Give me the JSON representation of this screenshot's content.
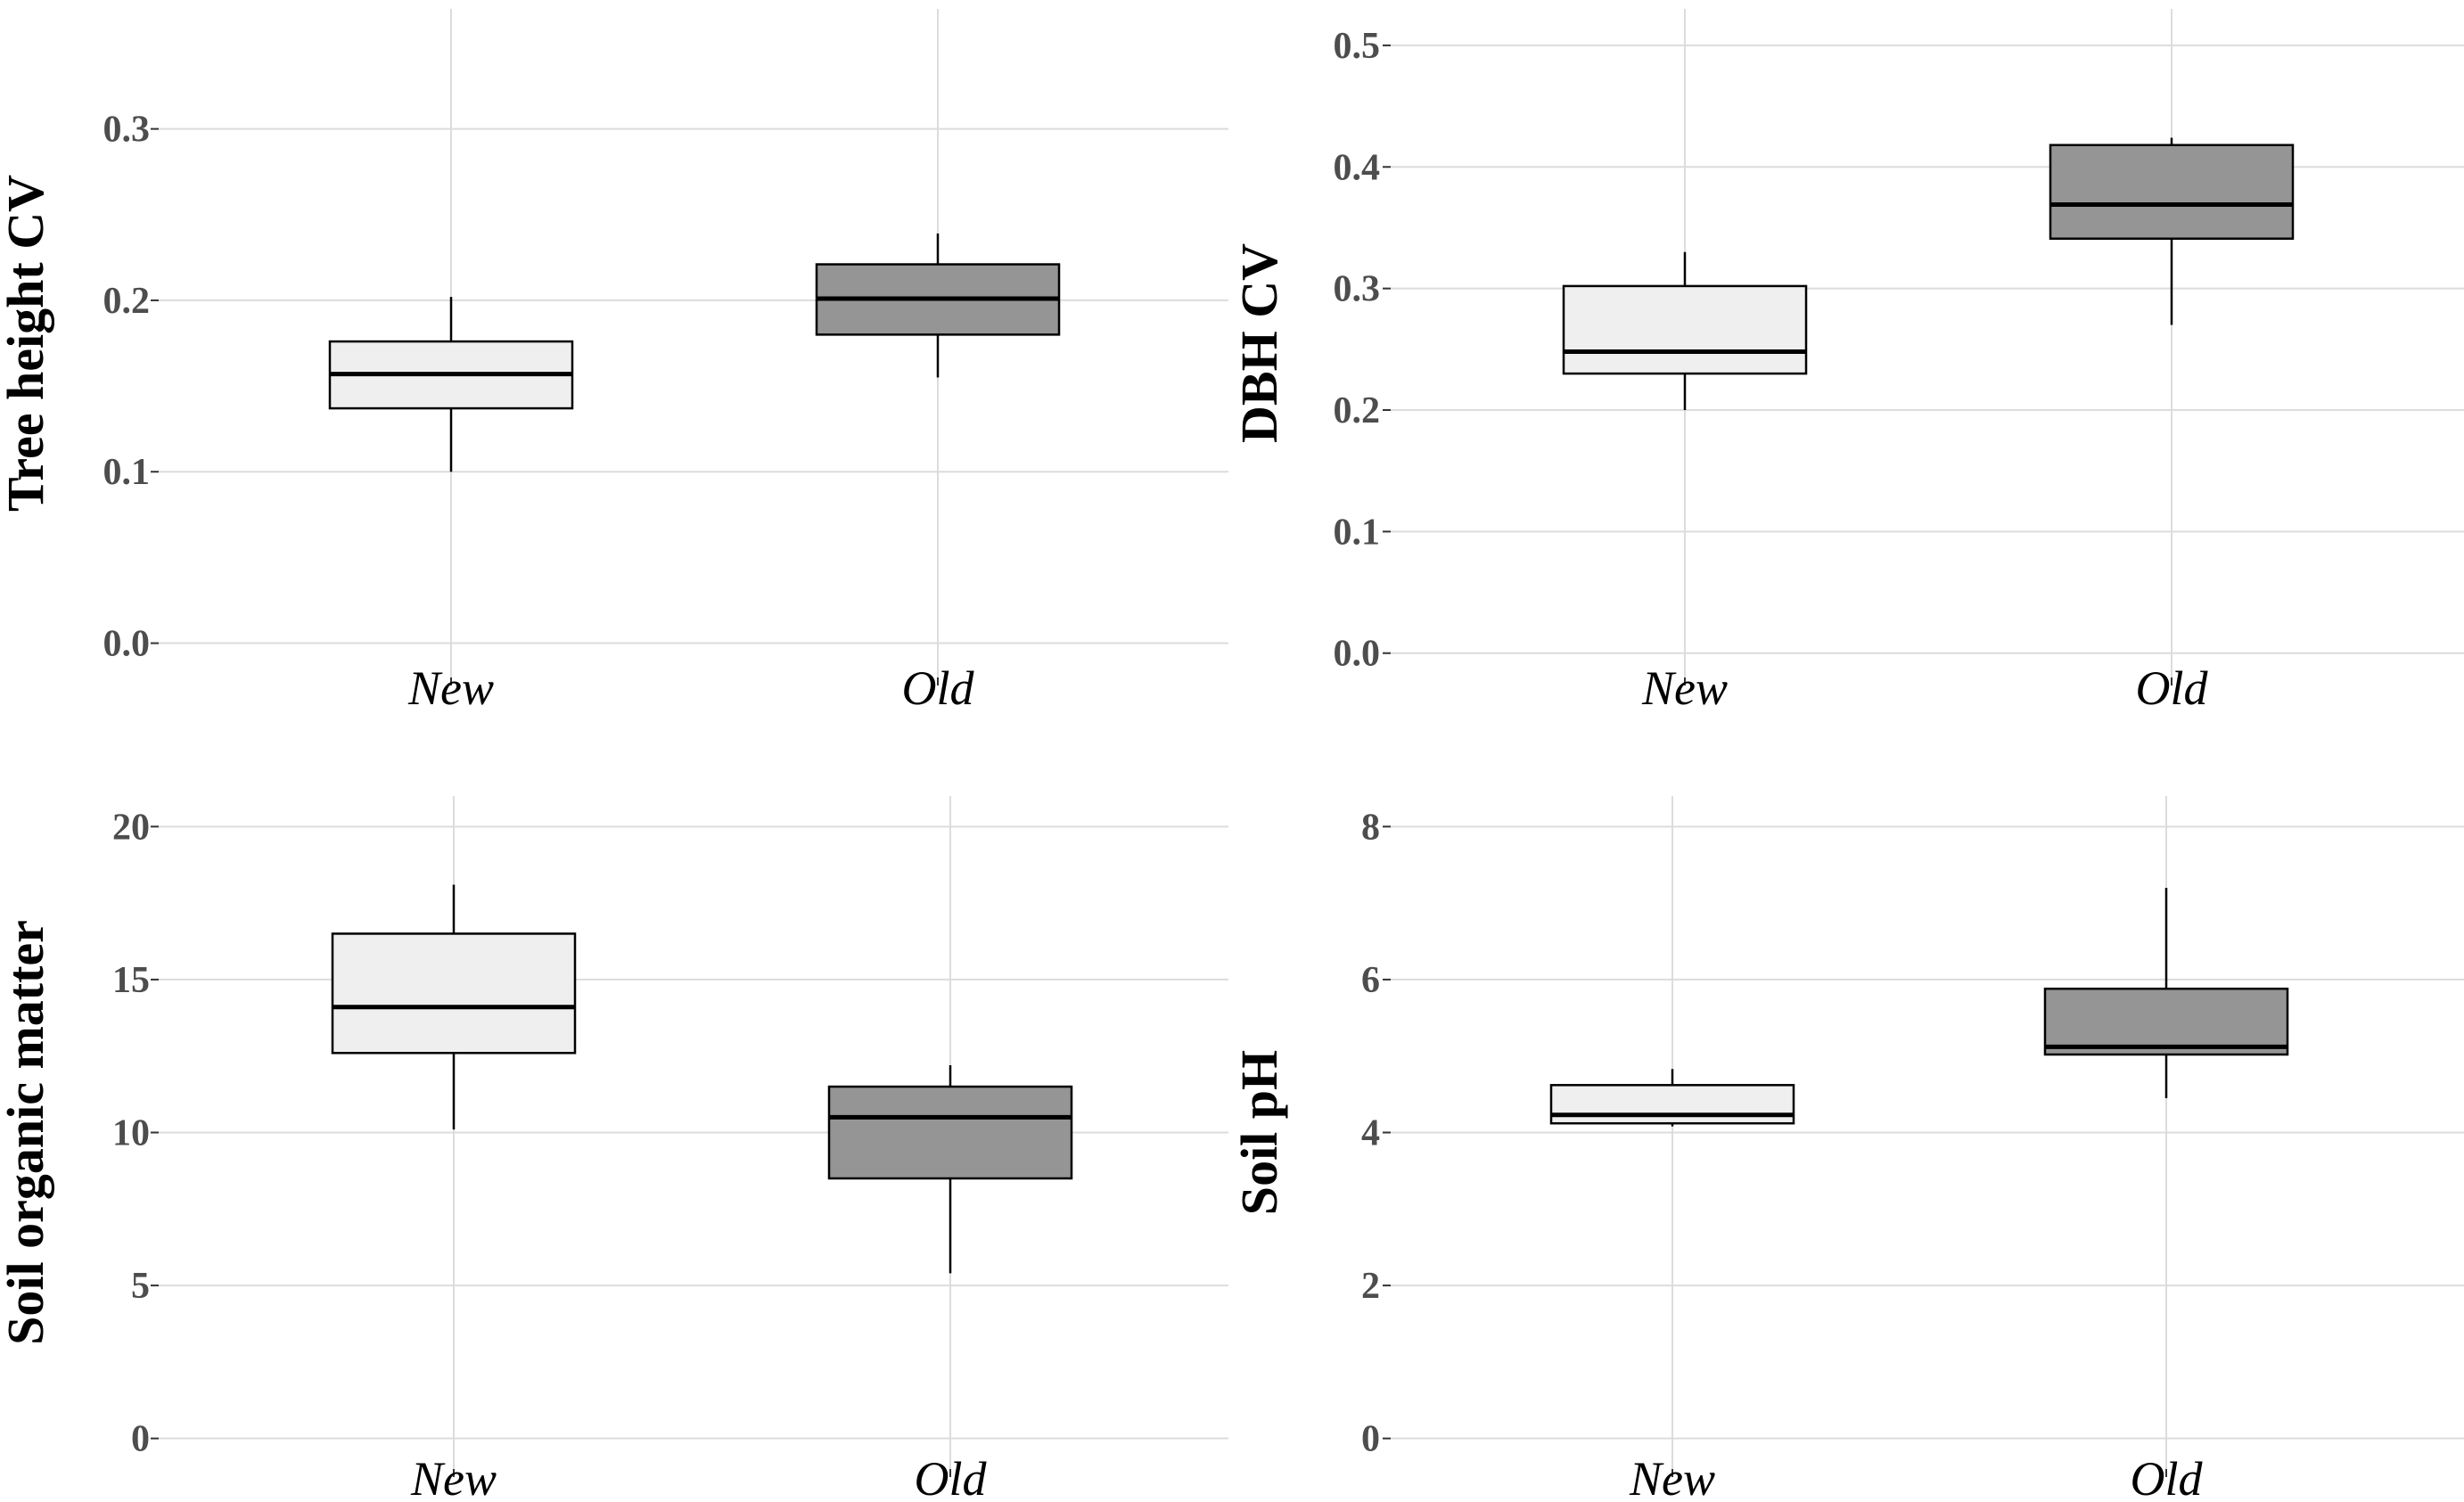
{
  "colors": {
    "new_fill": "#efefef",
    "old_fill": "#959595",
    "grid": "#dcdcdc"
  },
  "chart_data": [
    {
      "type": "box",
      "ylabel": "Tree height CV",
      "categories": [
        "New",
        "Old"
      ],
      "ylim": [
        -0.02,
        0.37
      ],
      "yticks": [
        0.0,
        0.1,
        0.2,
        0.3
      ],
      "ytick_labels": [
        "0.0",
        "0.1",
        "0.2",
        "0.3"
      ],
      "boxes": [
        {
          "category": "New",
          "min": 0.1,
          "q1": 0.137,
          "median": 0.157,
          "q3": 0.176,
          "max": 0.202
        },
        {
          "category": "Old",
          "min": 0.155,
          "q1": 0.18,
          "median": 0.201,
          "q3": 0.221,
          "max": 0.239
        }
      ]
    },
    {
      "type": "box",
      "ylabel": "DBH CV",
      "categories": [
        "New",
        "Old"
      ],
      "ylim": [
        -0.02,
        0.53
      ],
      "yticks": [
        0.0,
        0.1,
        0.2,
        0.3,
        0.4,
        0.5
      ],
      "ytick_labels": [
        "0.0",
        "0.1",
        "0.2",
        "0.3",
        "0.4",
        "0.5"
      ],
      "boxes": [
        {
          "category": "New",
          "min": 0.2,
          "q1": 0.23,
          "median": 0.248,
          "q3": 0.302,
          "max": 0.33
        },
        {
          "category": "Old",
          "min": 0.27,
          "q1": 0.341,
          "median": 0.369,
          "q3": 0.418,
          "max": 0.424
        }
      ]
    },
    {
      "type": "box",
      "ylabel": "Soil organic matter",
      "categories": [
        "New",
        "Old"
      ],
      "ylim": [
        -1,
        21
      ],
      "yticks": [
        0,
        5,
        10,
        15,
        20
      ],
      "ytick_labels": [
        "0",
        "5",
        "10",
        "15",
        "20"
      ],
      "boxes": [
        {
          "category": "New",
          "min": 10.1,
          "q1": 12.6,
          "median": 14.1,
          "q3": 16.5,
          "max": 18.1
        },
        {
          "category": "Old",
          "min": 5.4,
          "q1": 8.5,
          "median": 10.5,
          "q3": 11.5,
          "max": 12.2
        }
      ]
    },
    {
      "type": "box",
      "ylabel": "Soil pH",
      "categories": [
        "New",
        "Old"
      ],
      "ylim": [
        -0.4,
        8.4
      ],
      "yticks": [
        0,
        2,
        4,
        6,
        8
      ],
      "ytick_labels": [
        "0",
        "2",
        "4",
        "6",
        "8"
      ],
      "boxes": [
        {
          "category": "New",
          "min": 4.08,
          "q1": 4.12,
          "median": 4.23,
          "q3": 4.62,
          "max": 4.83
        },
        {
          "category": "Old",
          "min": 4.45,
          "q1": 5.02,
          "median": 5.12,
          "q3": 5.88,
          "max": 7.2
        }
      ]
    }
  ]
}
